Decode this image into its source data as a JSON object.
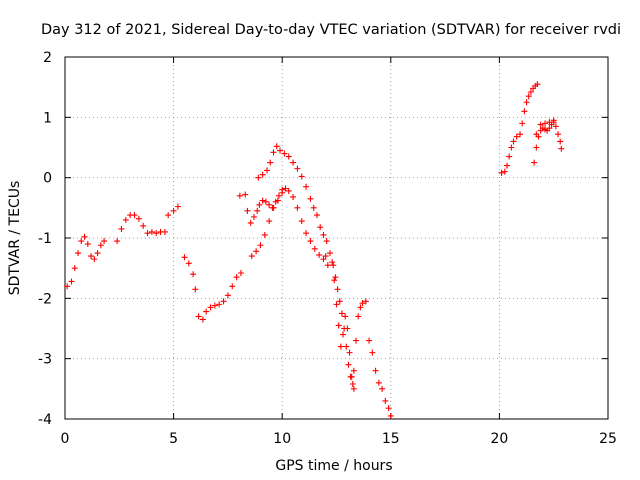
{
  "chart_data": {
    "type": "scatter",
    "title": "Day 312 of 2021, Sidereal Day-to-day VTEC variation (SDTVAR) for receiver rvdi",
    "xlabel": "GPS time / hours",
    "ylabel": "SDTVAR / TECUs",
    "xlim": [
      0,
      25
    ],
    "ylim": [
      -4,
      2
    ],
    "xticks": [
      "0",
      "5",
      "10",
      "15",
      "20",
      "25"
    ],
    "yticks": [
      "-4",
      "-3",
      "-2",
      "-1",
      "0",
      "1",
      "2"
    ],
    "grid": true,
    "marker": "+",
    "color": "#ff0000",
    "series": [
      {
        "points": [
          [
            0.1,
            -1.8
          ],
          [
            0.3,
            -1.72
          ],
          [
            0.45,
            -1.5
          ],
          [
            0.6,
            -1.25
          ],
          [
            0.75,
            -1.05
          ],
          [
            0.9,
            -0.98
          ],
          [
            1.05,
            -1.1
          ],
          [
            1.2,
            -1.3
          ],
          [
            1.35,
            -1.35
          ],
          [
            1.5,
            -1.25
          ],
          [
            1.65,
            -1.12
          ],
          [
            1.8,
            -1.05
          ],
          [
            2.4,
            -1.05
          ],
          [
            2.6,
            -0.85
          ],
          [
            2.8,
            -0.7
          ],
          [
            3.0,
            -0.62
          ],
          [
            3.2,
            -0.62
          ],
          [
            3.4,
            -0.68
          ],
          [
            3.6,
            -0.8
          ],
          [
            3.8,
            -0.92
          ],
          [
            4.0,
            -0.9
          ],
          [
            4.2,
            -0.92
          ],
          [
            4.4,
            -0.9
          ],
          [
            4.6,
            -0.9
          ],
          [
            4.75,
            -0.62
          ],
          [
            5.0,
            -0.55
          ],
          [
            5.2,
            -0.48
          ],
          [
            5.5,
            -1.32
          ],
          [
            5.7,
            -1.42
          ],
          [
            5.9,
            -1.6
          ],
          [
            6.0,
            -1.85
          ],
          [
            6.15,
            -2.3
          ],
          [
            6.35,
            -2.35
          ],
          [
            6.5,
            -2.22
          ],
          [
            6.7,
            -2.15
          ],
          [
            6.9,
            -2.12
          ],
          [
            7.1,
            -2.1
          ],
          [
            7.3,
            -2.05
          ],
          [
            7.5,
            -1.95
          ],
          [
            7.7,
            -1.8
          ],
          [
            7.9,
            -1.65
          ],
          [
            8.1,
            -1.58
          ],
          [
            8.05,
            -0.3
          ],
          [
            8.3,
            -0.28
          ],
          [
            8.4,
            -0.55
          ],
          [
            8.55,
            -0.75
          ],
          [
            8.7,
            -0.65
          ],
          [
            8.85,
            -0.55
          ],
          [
            8.95,
            -0.45
          ],
          [
            9.1,
            -0.38
          ],
          [
            9.25,
            -0.4
          ],
          [
            9.4,
            -0.45
          ],
          [
            9.55,
            -0.5
          ],
          [
            9.7,
            -0.4
          ],
          [
            9.85,
            -0.3
          ],
          [
            10.0,
            -0.2
          ],
          [
            10.15,
            -0.18
          ],
          [
            10.3,
            -0.22
          ],
          [
            10.5,
            -0.32
          ],
          [
            10.7,
            -0.5
          ],
          [
            10.9,
            -0.72
          ],
          [
            11.1,
            -0.92
          ],
          [
            11.3,
            -1.05
          ],
          [
            11.5,
            -1.18
          ],
          [
            11.7,
            -1.28
          ],
          [
            11.9,
            -1.35
          ],
          [
            12.0,
            -1.3
          ],
          [
            12.1,
            -1.45
          ],
          [
            8.6,
            -1.3
          ],
          [
            8.8,
            -1.22
          ],
          [
            9.0,
            -1.12
          ],
          [
            9.2,
            -0.95
          ],
          [
            9.4,
            -0.72
          ],
          [
            9.6,
            -0.5
          ],
          [
            9.8,
            -0.38
          ],
          [
            10.0,
            -0.25
          ],
          [
            8.9,
            0.0
          ],
          [
            9.1,
            0.05
          ],
          [
            9.3,
            0.12
          ],
          [
            9.45,
            0.25
          ],
          [
            9.6,
            0.42
          ],
          [
            9.75,
            0.52
          ],
          [
            9.9,
            0.45
          ],
          [
            10.1,
            0.4
          ],
          [
            10.3,
            0.35
          ],
          [
            10.5,
            0.25
          ],
          [
            10.7,
            0.15
          ],
          [
            10.9,
            0.02
          ],
          [
            11.1,
            -0.15
          ],
          [
            11.3,
            -0.35
          ],
          [
            11.45,
            -0.5
          ],
          [
            11.6,
            -0.62
          ],
          [
            11.75,
            -0.82
          ],
          [
            11.9,
            -0.95
          ],
          [
            12.05,
            -1.05
          ],
          [
            12.2,
            -1.25
          ],
          [
            12.35,
            -1.45
          ],
          [
            12.45,
            -1.65
          ],
          [
            12.55,
            -1.85
          ],
          [
            12.65,
            -2.05
          ],
          [
            12.75,
            -2.25
          ],
          [
            12.85,
            -2.5
          ],
          [
            12.95,
            -2.8
          ],
          [
            13.05,
            -3.1
          ],
          [
            13.15,
            -3.3
          ],
          [
            13.25,
            -3.42
          ],
          [
            13.3,
            -3.2
          ],
          [
            13.4,
            -2.7
          ],
          [
            13.5,
            -2.3
          ],
          [
            13.6,
            -2.15
          ],
          [
            13.7,
            -2.08
          ],
          [
            13.85,
            -2.05
          ],
          [
            12.3,
            -1.4
          ],
          [
            12.4,
            -1.7
          ],
          [
            12.5,
            -2.1
          ],
          [
            12.6,
            -2.45
          ],
          [
            12.7,
            -2.8
          ],
          [
            12.8,
            -2.6
          ],
          [
            12.9,
            -2.3
          ],
          [
            13.0,
            -2.5
          ],
          [
            13.1,
            -2.9
          ],
          [
            13.2,
            -3.3
          ],
          [
            13.3,
            -3.5
          ],
          [
            14.0,
            -2.7
          ],
          [
            14.15,
            -2.9
          ],
          [
            14.3,
            -3.2
          ],
          [
            14.45,
            -3.4
          ],
          [
            14.6,
            -3.5
          ],
          [
            14.75,
            -3.7
          ],
          [
            14.9,
            -3.82
          ],
          [
            15.0,
            -3.95
          ],
          [
            20.1,
            0.08
          ],
          [
            20.25,
            0.1
          ],
          [
            20.35,
            0.2
          ],
          [
            20.45,
            0.35
          ],
          [
            20.55,
            0.5
          ],
          [
            20.65,
            0.6
          ],
          [
            20.8,
            0.68
          ],
          [
            20.95,
            0.72
          ],
          [
            21.05,
            0.9
          ],
          [
            21.15,
            1.1
          ],
          [
            21.25,
            1.25
          ],
          [
            21.35,
            1.35
          ],
          [
            21.45,
            1.42
          ],
          [
            21.55,
            1.48
          ],
          [
            21.65,
            1.52
          ],
          [
            21.75,
            1.55
          ],
          [
            21.6,
            0.25
          ],
          [
            21.7,
            0.5
          ],
          [
            21.8,
            0.68
          ],
          [
            21.9,
            0.78
          ],
          [
            22.0,
            0.82
          ],
          [
            22.1,
            0.8
          ],
          [
            22.2,
            0.78
          ],
          [
            22.3,
            0.82
          ],
          [
            22.4,
            0.88
          ],
          [
            22.5,
            0.92
          ],
          [
            22.6,
            0.85
          ],
          [
            22.7,
            0.72
          ],
          [
            22.8,
            0.6
          ],
          [
            22.85,
            0.48
          ],
          [
            21.7,
            0.72
          ],
          [
            21.9,
            0.88
          ],
          [
            22.1,
            0.9
          ],
          [
            22.3,
            0.92
          ],
          [
            22.5,
            0.95
          ]
        ]
      }
    ]
  }
}
